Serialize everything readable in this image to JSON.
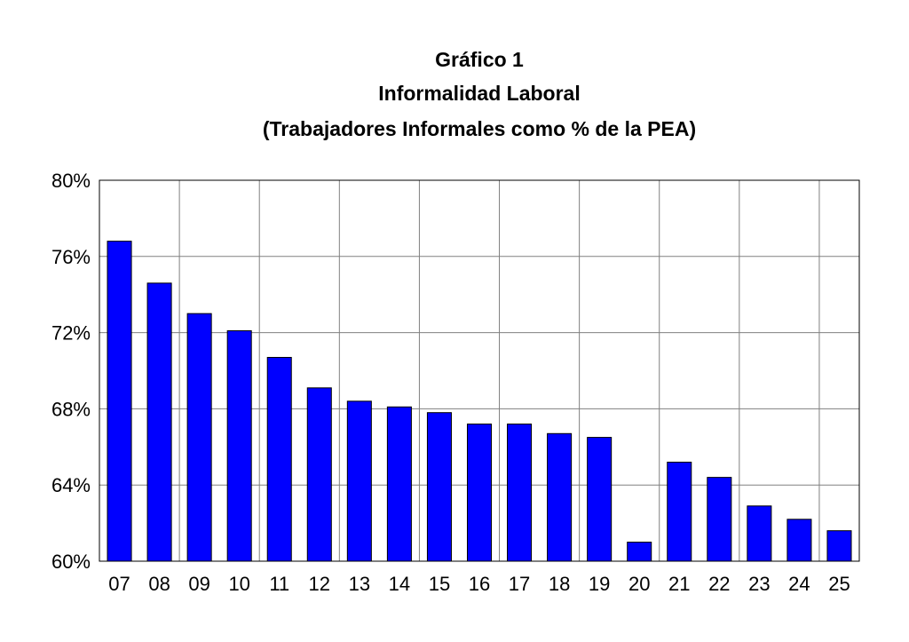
{
  "chart_data": {
    "type": "bar",
    "title": "Gráfico 1",
    "subtitle": "Informalidad Laboral",
    "subtitle2": "(Trabajadores Informales como % de la PEA)",
    "xlabel": "",
    "ylabel": "",
    "categories": [
      "07",
      "08",
      "09",
      "10",
      "11",
      "12",
      "13",
      "14",
      "15",
      "16",
      "17",
      "18",
      "19",
      "20",
      "21",
      "22",
      "23",
      "24",
      "25"
    ],
    "values": [
      76.8,
      74.6,
      73.0,
      72.1,
      70.7,
      69.1,
      68.4,
      68.1,
      67.8,
      67.2,
      67.2,
      66.7,
      66.5,
      61.0,
      65.2,
      64.4,
      62.9,
      62.2,
      61.6
    ],
    "ylim": [
      60,
      80
    ],
    "yticks": [
      "60%",
      "64%",
      "68%",
      "72%",
      "76%",
      "80%"
    ],
    "ytick_values": [
      60,
      64,
      68,
      72,
      76,
      80
    ],
    "bar_color": "#0000ff",
    "grid": true,
    "legend": "none"
  }
}
